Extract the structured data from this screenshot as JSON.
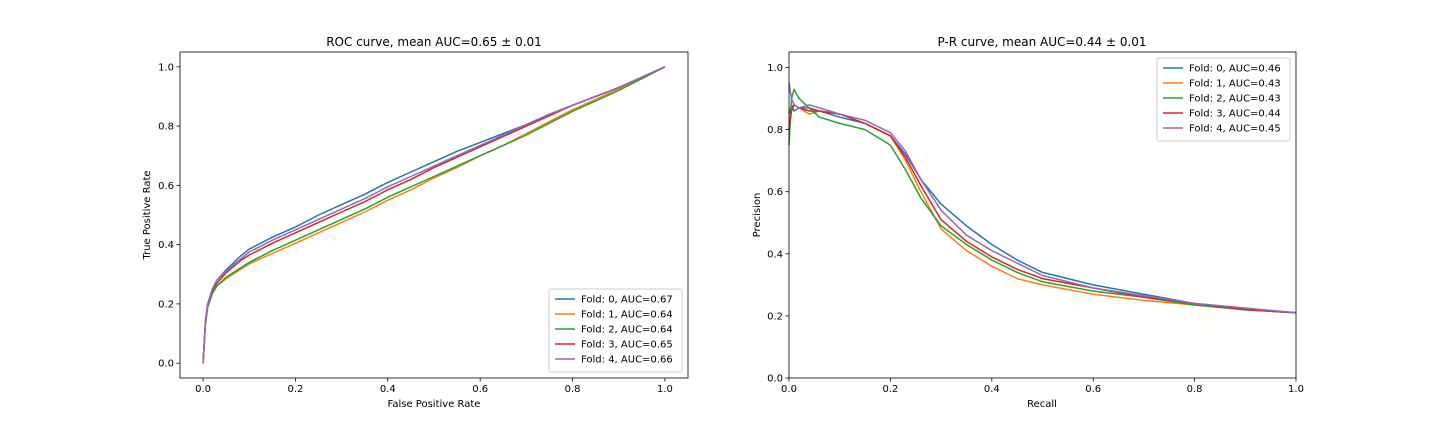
{
  "chart_data": [
    {
      "type": "line",
      "title": "ROC curve, mean AUC=0.65 ± 0.01",
      "xlabel": "False Positive Rate",
      "ylabel": "True Positive Rate",
      "xlim": [
        -0.05,
        1.05
      ],
      "ylim": [
        -0.05,
        1.05
      ],
      "xticks": [
        0.0,
        0.2,
        0.4,
        0.6,
        0.8,
        1.0
      ],
      "yticks": [
        0.0,
        0.2,
        0.4,
        0.6,
        0.8,
        1.0
      ],
      "xtick_labels": [
        "0.0",
        "0.2",
        "0.4",
        "0.6",
        "0.8",
        "1.0"
      ],
      "ytick_labels": [
        "0.0",
        "0.2",
        "0.4",
        "0.6",
        "0.8",
        "1.0"
      ],
      "grid": false,
      "legend_position": "lower right",
      "series": [
        {
          "name": "Fold: 0, AUC=0.67",
          "color": "#1f77b4",
          "x": [
            0.0,
            0.005,
            0.01,
            0.02,
            0.03,
            0.05,
            0.08,
            0.1,
            0.15,
            0.2,
            0.25,
            0.3,
            0.35,
            0.4,
            0.45,
            0.5,
            0.55,
            0.6,
            0.65,
            0.7,
            0.75,
            0.8,
            0.85,
            0.9,
            0.95,
            1.0
          ],
          "y": [
            0.0,
            0.14,
            0.2,
            0.25,
            0.28,
            0.315,
            0.36,
            0.385,
            0.425,
            0.46,
            0.5,
            0.535,
            0.57,
            0.61,
            0.645,
            0.68,
            0.715,
            0.745,
            0.775,
            0.805,
            0.84,
            0.87,
            0.9,
            0.93,
            0.965,
            1.0
          ]
        },
        {
          "name": "Fold: 1, AUC=0.64",
          "color": "#ff7f0e",
          "x": [
            0.0,
            0.005,
            0.01,
            0.02,
            0.03,
            0.05,
            0.08,
            0.1,
            0.15,
            0.2,
            0.25,
            0.3,
            0.35,
            0.4,
            0.45,
            0.5,
            0.55,
            0.6,
            0.65,
            0.7,
            0.75,
            0.8,
            0.85,
            0.9,
            0.95,
            1.0
          ],
          "y": [
            0.0,
            0.13,
            0.19,
            0.235,
            0.26,
            0.285,
            0.315,
            0.335,
            0.37,
            0.405,
            0.44,
            0.475,
            0.51,
            0.55,
            0.585,
            0.625,
            0.66,
            0.7,
            0.735,
            0.775,
            0.815,
            0.855,
            0.89,
            0.925,
            0.96,
            1.0
          ]
        },
        {
          "name": "Fold: 2, AUC=0.64",
          "color": "#2ca02c",
          "x": [
            0.0,
            0.005,
            0.01,
            0.02,
            0.03,
            0.05,
            0.08,
            0.1,
            0.15,
            0.2,
            0.25,
            0.3,
            0.35,
            0.4,
            0.45,
            0.5,
            0.55,
            0.6,
            0.65,
            0.7,
            0.75,
            0.8,
            0.85,
            0.9,
            0.95,
            1.0
          ],
          "y": [
            0.0,
            0.13,
            0.19,
            0.235,
            0.26,
            0.29,
            0.32,
            0.34,
            0.38,
            0.415,
            0.45,
            0.485,
            0.52,
            0.56,
            0.595,
            0.63,
            0.665,
            0.7,
            0.735,
            0.77,
            0.81,
            0.85,
            0.885,
            0.92,
            0.96,
            1.0
          ]
        },
        {
          "name": "Fold: 3, AUC=0.65",
          "color": "#d62728",
          "x": [
            0.0,
            0.005,
            0.01,
            0.02,
            0.03,
            0.05,
            0.08,
            0.1,
            0.15,
            0.2,
            0.25,
            0.3,
            0.35,
            0.4,
            0.45,
            0.5,
            0.55,
            0.6,
            0.65,
            0.7,
            0.75,
            0.8,
            0.85,
            0.9,
            0.95,
            1.0
          ],
          "y": [
            0.0,
            0.14,
            0.2,
            0.245,
            0.27,
            0.305,
            0.345,
            0.365,
            0.405,
            0.44,
            0.475,
            0.51,
            0.545,
            0.585,
            0.62,
            0.66,
            0.695,
            0.73,
            0.765,
            0.8,
            0.835,
            0.87,
            0.9,
            0.93,
            0.965,
            1.0
          ]
        },
        {
          "name": "Fold: 4, AUC=0.66",
          "color": "#9467bd",
          "x": [
            0.0,
            0.005,
            0.01,
            0.02,
            0.03,
            0.05,
            0.08,
            0.1,
            0.15,
            0.2,
            0.25,
            0.3,
            0.35,
            0.4,
            0.45,
            0.5,
            0.55,
            0.6,
            0.65,
            0.7,
            0.75,
            0.8,
            0.85,
            0.9,
            0.95,
            1.0
          ],
          "y": [
            0.0,
            0.14,
            0.2,
            0.25,
            0.28,
            0.31,
            0.35,
            0.375,
            0.415,
            0.45,
            0.485,
            0.52,
            0.555,
            0.595,
            0.63,
            0.665,
            0.7,
            0.735,
            0.77,
            0.805,
            0.84,
            0.87,
            0.9,
            0.93,
            0.965,
            1.0
          ]
        }
      ]
    },
    {
      "type": "line",
      "title": "P-R curve, mean AUC=0.44 ± 0.01",
      "xlabel": "Recall",
      "ylabel": "Precision",
      "xlim": [
        0.0,
        1.0
      ],
      "ylim": [
        0.0,
        1.05
      ],
      "xticks": [
        0.0,
        0.2,
        0.4,
        0.6,
        0.8,
        1.0
      ],
      "yticks": [
        0.0,
        0.2,
        0.4,
        0.6,
        0.8,
        1.0
      ],
      "xtick_labels": [
        "0.0",
        "0.2",
        "0.4",
        "0.6",
        "0.8",
        "1.0"
      ],
      "ytick_labels": [
        "0.0",
        "0.2",
        "0.4",
        "0.6",
        "0.8",
        "1.0"
      ],
      "grid": false,
      "legend_position": "upper right",
      "series": [
        {
          "name": "Fold: 0, AUC=0.46",
          "color": "#1f77b4",
          "x": [
            0.0,
            0.005,
            0.01,
            0.02,
            0.04,
            0.06,
            0.1,
            0.15,
            0.2,
            0.23,
            0.26,
            0.3,
            0.35,
            0.4,
            0.45,
            0.5,
            0.6,
            0.7,
            0.8,
            0.9,
            1.0
          ],
          "y": [
            0.85,
            0.88,
            0.86,
            0.87,
            0.87,
            0.86,
            0.84,
            0.82,
            0.78,
            0.72,
            0.64,
            0.56,
            0.49,
            0.43,
            0.38,
            0.34,
            0.3,
            0.27,
            0.24,
            0.225,
            0.21
          ]
        },
        {
          "name": "Fold: 1, AUC=0.43",
          "color": "#ff7f0e",
          "x": [
            0.0,
            0.005,
            0.01,
            0.02,
            0.04,
            0.06,
            0.1,
            0.15,
            0.2,
            0.23,
            0.26,
            0.3,
            0.35,
            0.4,
            0.45,
            0.5,
            0.6,
            0.7,
            0.8,
            0.9,
            1.0
          ],
          "y": [
            0.82,
            0.86,
            0.88,
            0.87,
            0.85,
            0.86,
            0.85,
            0.82,
            0.78,
            0.7,
            0.6,
            0.48,
            0.41,
            0.36,
            0.32,
            0.3,
            0.27,
            0.25,
            0.235,
            0.22,
            0.21
          ]
        },
        {
          "name": "Fold: 2, AUC=0.43",
          "color": "#2ca02c",
          "x": [
            0.0,
            0.005,
            0.01,
            0.02,
            0.04,
            0.06,
            0.1,
            0.15,
            0.2,
            0.23,
            0.26,
            0.3,
            0.35,
            0.4,
            0.45,
            0.5,
            0.6,
            0.7,
            0.8,
            0.9,
            1.0
          ],
          "y": [
            0.75,
            0.9,
            0.93,
            0.9,
            0.87,
            0.84,
            0.82,
            0.8,
            0.75,
            0.67,
            0.58,
            0.49,
            0.43,
            0.38,
            0.34,
            0.31,
            0.28,
            0.26,
            0.235,
            0.22,
            0.21
          ]
        },
        {
          "name": "Fold: 3, AUC=0.44",
          "color": "#d62728",
          "x": [
            0.0,
            0.005,
            0.01,
            0.02,
            0.04,
            0.06,
            0.1,
            0.15,
            0.2,
            0.23,
            0.26,
            0.3,
            0.35,
            0.4,
            0.45,
            0.5,
            0.6,
            0.7,
            0.8,
            0.9,
            1.0
          ],
          "y": [
            0.8,
            0.86,
            0.88,
            0.87,
            0.86,
            0.86,
            0.85,
            0.82,
            0.78,
            0.71,
            0.62,
            0.51,
            0.44,
            0.39,
            0.35,
            0.32,
            0.29,
            0.26,
            0.24,
            0.22,
            0.21
          ]
        },
        {
          "name": "Fold: 4, AUC=0.45",
          "color": "#9467bd",
          "x": [
            0.0,
            0.005,
            0.01,
            0.02,
            0.04,
            0.06,
            0.1,
            0.15,
            0.2,
            0.23,
            0.26,
            0.3,
            0.35,
            0.4,
            0.45,
            0.5,
            0.6,
            0.7,
            0.8,
            0.9,
            1.0
          ],
          "y": [
            0.95,
            0.9,
            0.88,
            0.87,
            0.88,
            0.87,
            0.85,
            0.83,
            0.79,
            0.73,
            0.64,
            0.54,
            0.46,
            0.41,
            0.37,
            0.33,
            0.29,
            0.265,
            0.24,
            0.225,
            0.21
          ]
        }
      ]
    }
  ]
}
